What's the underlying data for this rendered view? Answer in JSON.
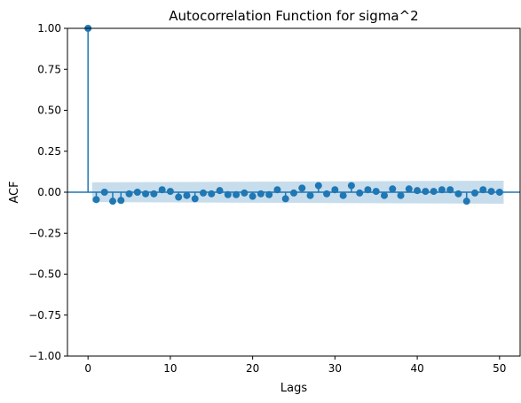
{
  "chart_data": {
    "type": "scatter",
    "style": "stem",
    "title": "Autocorrelation Function for sigma^2",
    "xlabel": "Lags",
    "ylabel": "ACF",
    "xlim": [
      -2.5,
      52.5
    ],
    "ylim": [
      -1.0,
      1.0
    ],
    "xticks": [
      0,
      10,
      20,
      30,
      40,
      50
    ],
    "xtick_labels": [
      "0",
      "10",
      "20",
      "30",
      "40",
      "50"
    ],
    "yticks": [
      1.0,
      0.75,
      0.5,
      0.25,
      0.0,
      -0.25,
      -0.5,
      -0.75,
      -1.0
    ],
    "ytick_labels": [
      "1.00",
      "0.75",
      "0.50",
      "0.25",
      "0.00",
      "−0.25",
      "−0.50",
      "−0.75",
      "−1.00"
    ],
    "grid": false,
    "legend": false,
    "colors": {
      "marker": "#1f77b4",
      "confidence_band": "#1f77b4"
    },
    "confidence_band": {
      "x": [
        0.5,
        50.5
      ],
      "lower": [
        -0.06,
        -0.07
      ],
      "upper": [
        0.06,
        0.07
      ]
    },
    "x": [
      0,
      1,
      2,
      3,
      4,
      5,
      6,
      7,
      8,
      9,
      10,
      11,
      12,
      13,
      14,
      15,
      16,
      17,
      18,
      19,
      20,
      21,
      22,
      23,
      24,
      25,
      26,
      27,
      28,
      29,
      30,
      31,
      32,
      33,
      34,
      35,
      36,
      37,
      38,
      39,
      40,
      41,
      42,
      43,
      44,
      45,
      46,
      47,
      48,
      49,
      50
    ],
    "values": [
      1.0,
      -0.045,
      0.0,
      -0.055,
      -0.05,
      -0.01,
      0.0,
      -0.01,
      -0.01,
      0.015,
      0.005,
      -0.03,
      -0.02,
      -0.04,
      -0.005,
      -0.01,
      0.01,
      -0.015,
      -0.015,
      -0.005,
      -0.025,
      -0.01,
      -0.015,
      0.015,
      -0.04,
      -0.005,
      0.025,
      -0.02,
      0.04,
      -0.01,
      0.015,
      -0.02,
      0.04,
      -0.005,
      0.015,
      0.005,
      -0.02,
      0.02,
      -0.02,
      0.02,
      0.01,
      0.005,
      0.005,
      0.015,
      0.015,
      -0.01,
      -0.055,
      -0.005,
      0.015,
      0.005,
      0.0
    ]
  }
}
